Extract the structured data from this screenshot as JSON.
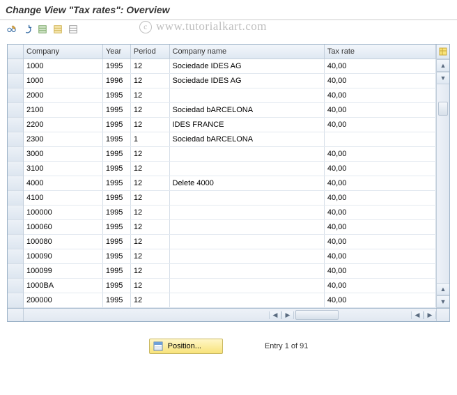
{
  "title": "Change View \"Tax rates\": Overview",
  "watermark": "www.tutorialkart.com",
  "toolbar": {
    "btn1_name": "other-view-icon",
    "btn2_name": "undo-icon",
    "btn3_name": "select-all-icon",
    "btn4_name": "select-block-icon",
    "btn5_name": "deselect-icon"
  },
  "columns": {
    "company": "Company",
    "year": "Year",
    "period": "Period",
    "company_name": "Company name",
    "tax_rate": "Tax rate"
  },
  "col_widths": {
    "company": 102,
    "year": 36,
    "period": 50,
    "company_name": 200,
    "tax_rate": 144
  },
  "rows": [
    {
      "company": "1000",
      "year": "1995",
      "period": "12",
      "company_name": "Sociedade IDES AG",
      "tax_rate": "40,00"
    },
    {
      "company": "1000",
      "year": "1996",
      "period": "12",
      "company_name": "Sociedade IDES AG",
      "tax_rate": "40,00"
    },
    {
      "company": "2000",
      "year": "1995",
      "period": "12",
      "company_name": "",
      "tax_rate": "40,00"
    },
    {
      "company": "2100",
      "year": "1995",
      "period": "12",
      "company_name": "Sociedad bARCELONA",
      "tax_rate": "40,00"
    },
    {
      "company": "2200",
      "year": "1995",
      "period": "12",
      "company_name": "IDES FRANCE",
      "tax_rate": "40,00"
    },
    {
      "company": "2300",
      "year": "1995",
      "period": "1",
      "company_name": "Sociedad bARCELONA",
      "tax_rate": ""
    },
    {
      "company": "3000",
      "year": "1995",
      "period": "12",
      "company_name": "",
      "tax_rate": "40,00"
    },
    {
      "company": "3100",
      "year": "1995",
      "period": "12",
      "company_name": "",
      "tax_rate": "40,00"
    },
    {
      "company": "4000",
      "year": "1995",
      "period": "12",
      "company_name": "Delete 4000",
      "tax_rate": "40,00"
    },
    {
      "company": "4100",
      "year": "1995",
      "period": "12",
      "company_name": "",
      "tax_rate": "40,00"
    },
    {
      "company": "100000",
      "year": "1995",
      "period": "12",
      "company_name": "",
      "tax_rate": "40,00"
    },
    {
      "company": "100060",
      "year": "1995",
      "period": "12",
      "company_name": "",
      "tax_rate": "40,00"
    },
    {
      "company": "100080",
      "year": "1995",
      "period": "12",
      "company_name": "",
      "tax_rate": "40,00"
    },
    {
      "company": "100090",
      "year": "1995",
      "period": "12",
      "company_name": "",
      "tax_rate": "40,00"
    },
    {
      "company": "100099",
      "year": "1995",
      "period": "12",
      "company_name": "",
      "tax_rate": "40,00"
    },
    {
      "company": "1000BA",
      "year": "1995",
      "period": "12",
      "company_name": "",
      "tax_rate": "40,00"
    },
    {
      "company": "200000",
      "year": "1995",
      "period": "12",
      "company_name": "",
      "tax_rate": "40,00"
    }
  ],
  "footer": {
    "position_label": "Position...",
    "entry_text": "Entry 1 of 91"
  },
  "colors": {
    "header_grad_top": "#f2f6fb",
    "header_grad_bot": "#dfe8f2",
    "border": "#c2cedb",
    "cell_bg": "#ffffff"
  }
}
